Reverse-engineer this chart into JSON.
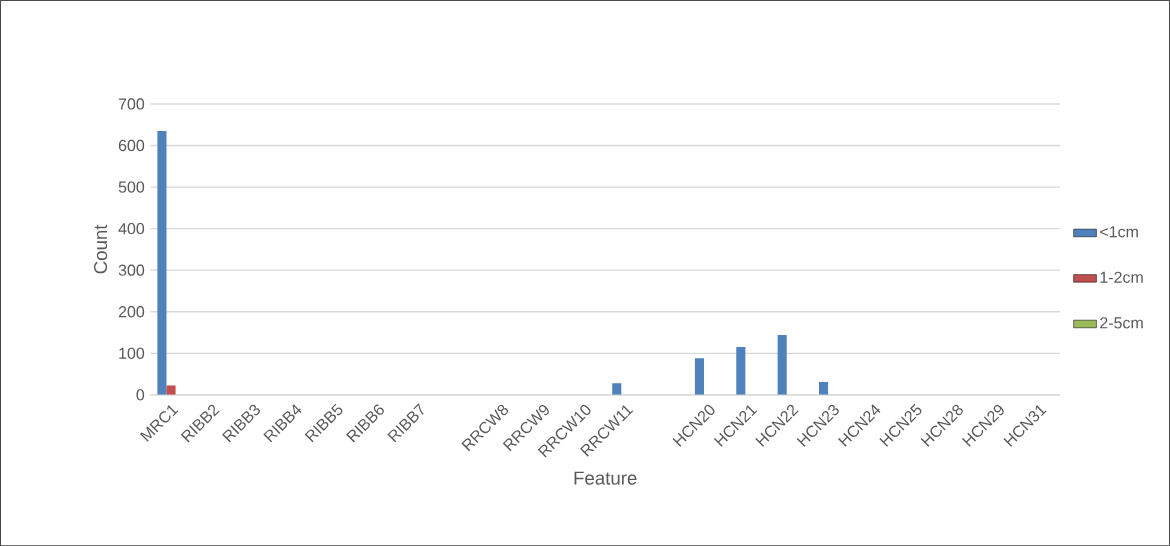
{
  "chart_data": {
    "type": "bar",
    "xlabel": "Feature",
    "ylabel": "Count",
    "categories": [
      "MRC1",
      "RIBB2",
      "RIBB3",
      "RIBB4",
      "RIBB5",
      "RIBB6",
      "RIBB7",
      null,
      "RRCW8",
      "RRCW9",
      "RRCW10",
      "RRCW11",
      null,
      "HCN20",
      "HCN21",
      "HCN22",
      "HCN23",
      "HCN24",
      "HCN25",
      "HCN28",
      "HCN29",
      "HCN31"
    ],
    "series": [
      {
        "name": "<1cm",
        "color": "#4f81bd",
        "values": [
          635,
          0,
          0,
          0,
          0,
          0,
          0,
          0,
          0,
          null,
          0,
          28,
          0,
          88,
          115,
          144,
          31,
          0,
          0,
          0,
          0,
          0
        ]
      },
      {
        "name": "1-2cm",
        "color": "#c0504d",
        "values": [
          23,
          0,
          0,
          0,
          0,
          0,
          0,
          0,
          0,
          0,
          0,
          null,
          0,
          0,
          0,
          0,
          0,
          0,
          0,
          0,
          0,
          0
        ]
      },
      {
        "name": "2-5cm",
        "color": "#9bbb59",
        "values": [
          0,
          0,
          0,
          0,
          0,
          0,
          0,
          0,
          0,
          0,
          0,
          0,
          0,
          0,
          0,
          0,
          0,
          0,
          0,
          0,
          0,
          0
        ]
      }
    ],
    "ylim": [
      0,
      700
    ],
    "yticks": [
      0,
      100,
      200,
      300,
      400,
      500,
      600,
      700
    ],
    "grid": "y",
    "legend": "right"
  }
}
